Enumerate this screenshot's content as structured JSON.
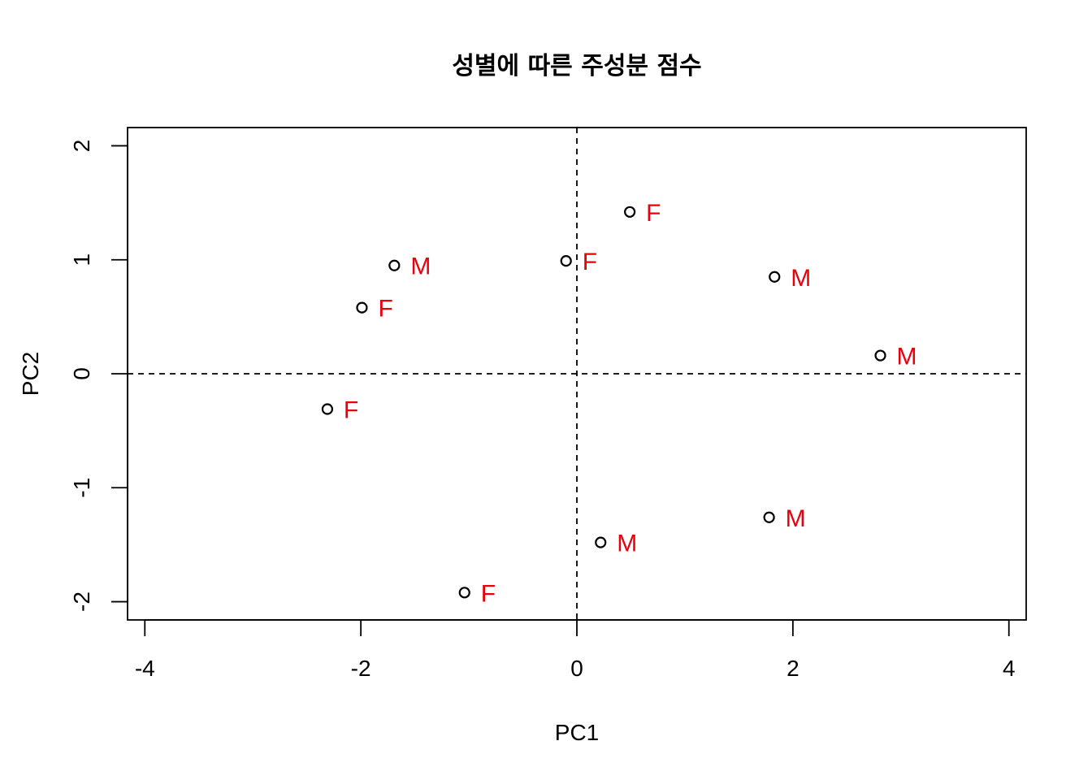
{
  "chart_data": {
    "type": "scatter",
    "title": "성별에 따른 주성분 점수",
    "xlabel": "PC1",
    "ylabel": "PC2",
    "xlim": [
      -4.16,
      4.16
    ],
    "ylim": [
      -2.16,
      2.16
    ],
    "x_ticks": [
      -4,
      -2,
      0,
      2,
      4
    ],
    "y_ticks": [
      -2,
      -1,
      0,
      1,
      2
    ],
    "reference_lines": {
      "x": 0,
      "y": 0,
      "style": "dashed"
    },
    "label_color": "#e8000b",
    "grid": false,
    "legend": "none",
    "points": [
      {
        "x": 0.49,
        "y": 1.42,
        "label": "F"
      },
      {
        "x": -0.1,
        "y": 0.99,
        "label": "F"
      },
      {
        "x": -1.69,
        "y": 0.95,
        "label": "M"
      },
      {
        "x": 1.83,
        "y": 0.85,
        "label": "M"
      },
      {
        "x": -1.99,
        "y": 0.58,
        "label": "F"
      },
      {
        "x": 2.81,
        "y": 0.16,
        "label": "M"
      },
      {
        "x": -2.31,
        "y": -0.31,
        "label": "F"
      },
      {
        "x": 1.78,
        "y": -1.26,
        "label": "M"
      },
      {
        "x": 0.22,
        "y": -1.48,
        "label": "M"
      },
      {
        "x": -1.04,
        "y": -1.92,
        "label": "F"
      }
    ]
  }
}
